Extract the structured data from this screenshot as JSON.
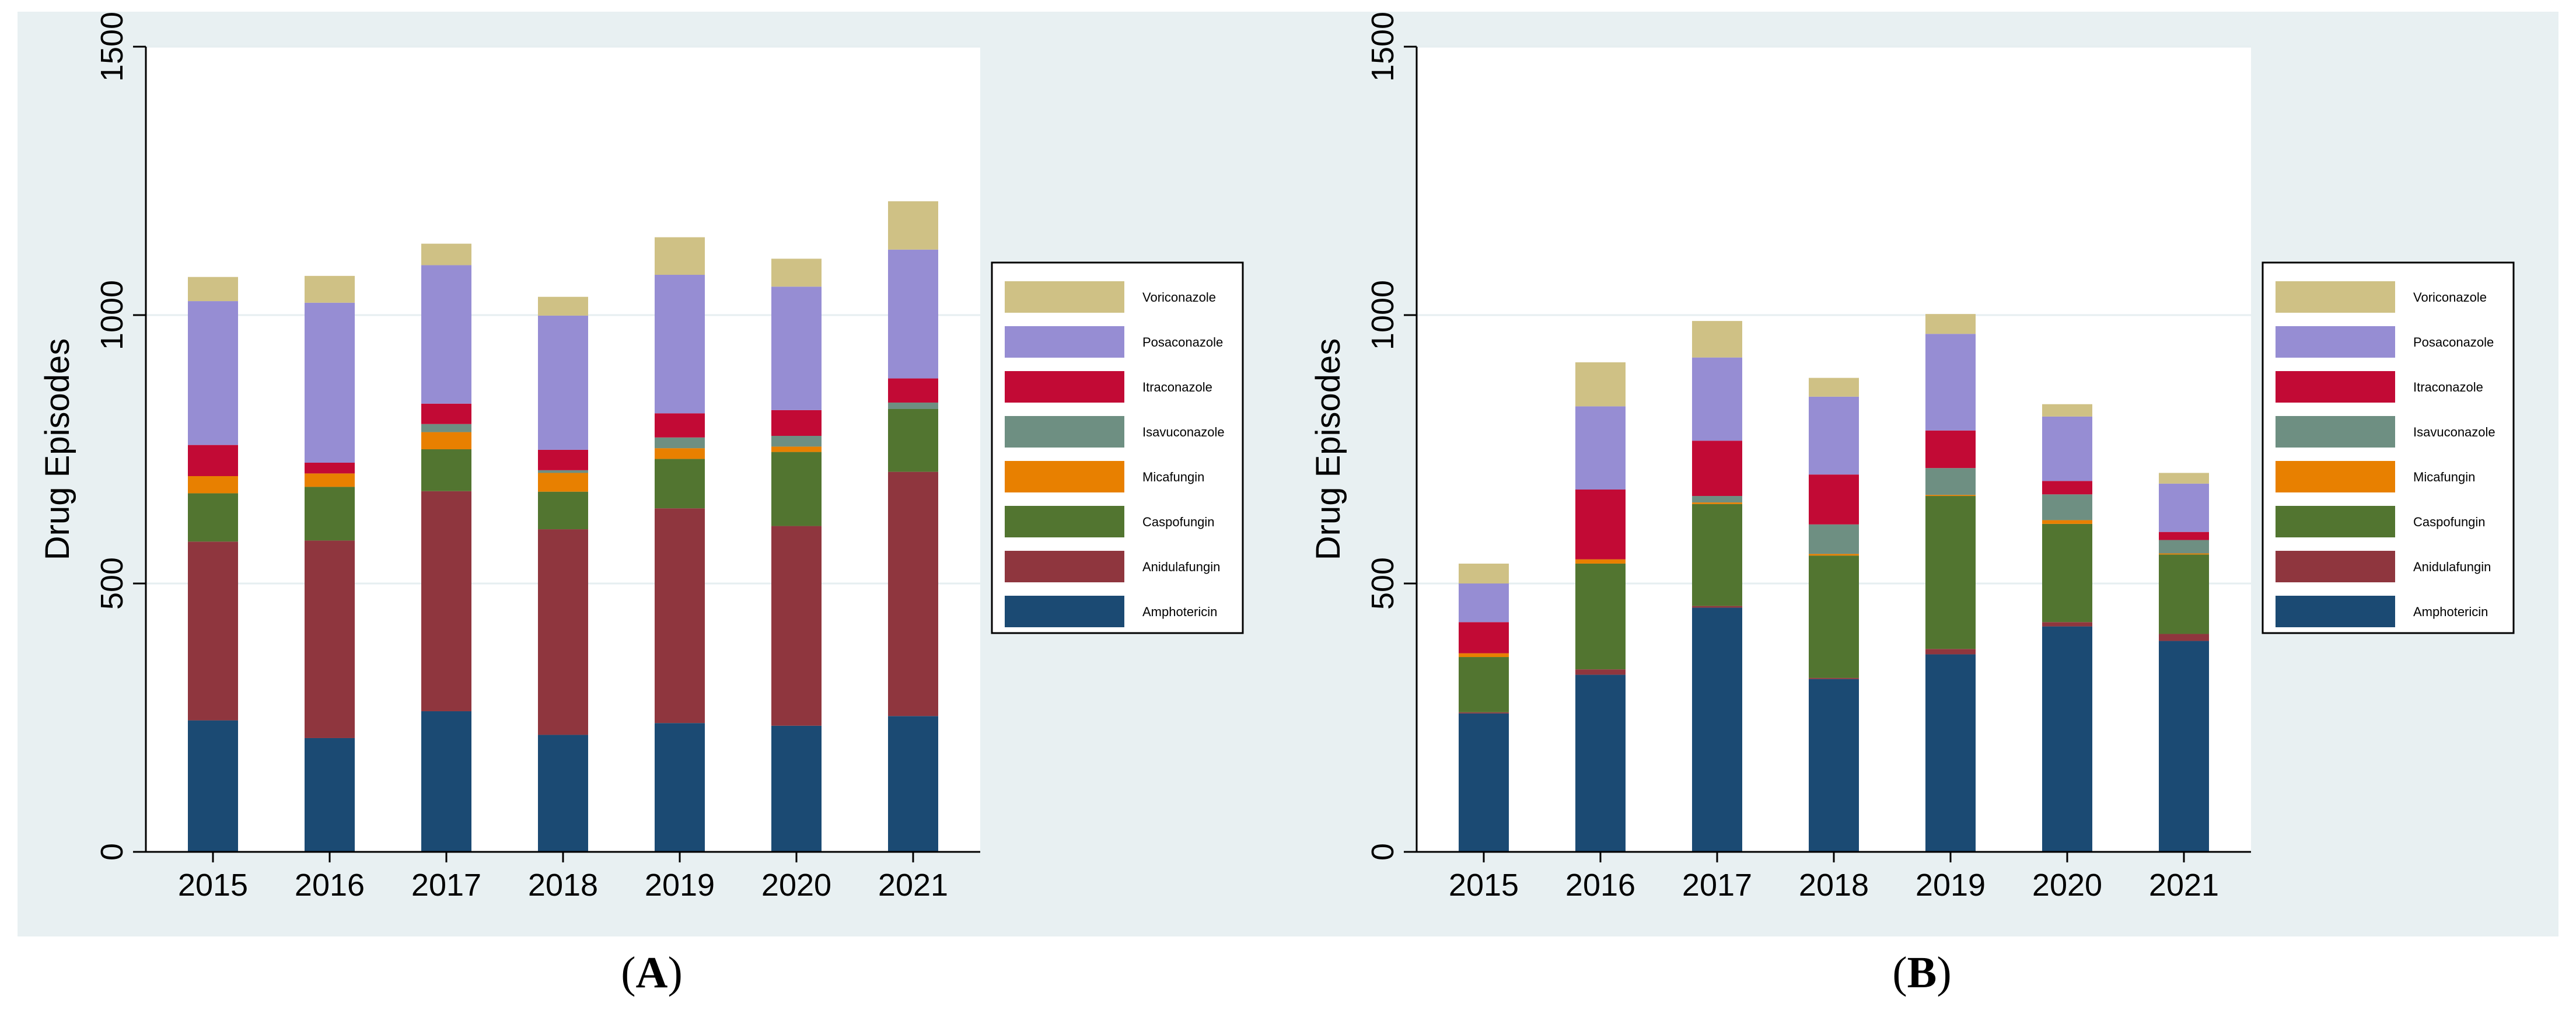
{
  "colors": {
    "background": "#e8f0f2",
    "plot_bg": "#ffffff",
    "grid": "#e6eef0",
    "series": {
      "Amphotericin": "#1b4a73",
      "Anidulafungin": "#8f363e",
      "Caspofungin": "#527530",
      "Micafungin": "#e88000",
      "Isavuconazole": "#6e8f82",
      "Itraconazole": "#c20a35",
      "Posaconazole": "#968dd3",
      "Voriconazole": "#cfc185"
    }
  },
  "chart_data": [
    {
      "type": "bar",
      "stacked": true,
      "panel_label": "(A)",
      "panel": {
        "open": "(",
        "letter": "A",
        "close": ")"
      },
      "ylabel": "Drug Episodes",
      "xlabel": "",
      "ylim": [
        0,
        1500
      ],
      "yticks": [
        0,
        500,
        1000,
        1500
      ],
      "grid": true,
      "legend_position": "right",
      "categories": [
        "2015",
        "2016",
        "2017",
        "2018",
        "2019",
        "2020",
        "2021"
      ],
      "series": [
        {
          "name": "Amphotericin",
          "values": [
            245,
            212,
            262,
            218,
            240,
            235,
            253
          ]
        },
        {
          "name": "Anidulafungin",
          "values": [
            333,
            368,
            410,
            383,
            400,
            372,
            455
          ]
        },
        {
          "name": "Caspofungin",
          "values": [
            90,
            100,
            78,
            70,
            92,
            138,
            117
          ]
        },
        {
          "name": "Micafungin",
          "values": [
            32,
            25,
            32,
            35,
            20,
            10,
            0
          ]
        },
        {
          "name": "Isavuconazole",
          "values": [
            0,
            0,
            15,
            5,
            20,
            20,
            12
          ]
        },
        {
          "name": "Itraconazole",
          "values": [
            58,
            20,
            38,
            38,
            45,
            48,
            45
          ]
        },
        {
          "name": "Posaconazole",
          "values": [
            268,
            298,
            258,
            250,
            258,
            230,
            240
          ]
        },
        {
          "name": "Voriconazole",
          "values": [
            45,
            50,
            40,
            35,
            70,
            52,
            90
          ]
        }
      ]
    },
    {
      "type": "bar",
      "stacked": true,
      "panel_label": "(B)",
      "panel": {
        "open": "(",
        "letter": "B",
        "close": ")"
      },
      "ylabel": "Drug Episodes",
      "xlabel": "",
      "ylim": [
        0,
        1500
      ],
      "yticks": [
        0,
        500,
        1000,
        1500
      ],
      "grid": true,
      "legend_position": "right",
      "categories": [
        "2015",
        "2016",
        "2017",
        "2018",
        "2019",
        "2020",
        "2021"
      ],
      "series": [
        {
          "name": "Amphotericin",
          "values": [
            258,
            330,
            455,
            322,
            368,
            420,
            393
          ]
        },
        {
          "name": "Anidulafungin",
          "values": [
            2,
            10,
            3,
            2,
            10,
            8,
            13
          ]
        },
        {
          "name": "Caspofungin",
          "values": [
            103,
            197,
            190,
            228,
            285,
            183,
            148
          ]
        },
        {
          "name": "Micafungin",
          "values": [
            7,
            8,
            3,
            3,
            2,
            7,
            2
          ]
        },
        {
          "name": "Isavuconazole",
          "values": [
            0,
            0,
            12,
            55,
            50,
            48,
            25
          ]
        },
        {
          "name": "Itraconazole",
          "values": [
            58,
            130,
            103,
            93,
            70,
            25,
            15
          ]
        },
        {
          "name": "Posaconazole",
          "values": [
            72,
            155,
            155,
            145,
            180,
            120,
            90
          ]
        },
        {
          "name": "Voriconazole",
          "values": [
            37,
            82,
            68,
            35,
            37,
            23,
            20
          ]
        }
      ]
    }
  ]
}
